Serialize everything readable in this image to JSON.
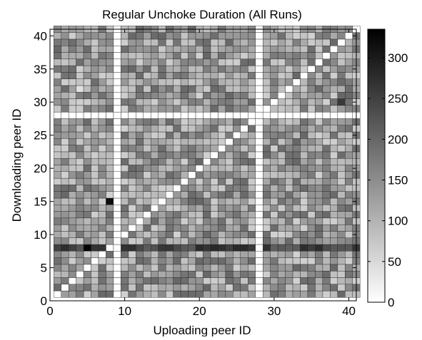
{
  "chart_data": {
    "type": "heatmap",
    "title": "Regular Unchoke Duration (All Runs)",
    "xlabel": "Uploading peer ID",
    "ylabel": "Downloading peer ID",
    "xlim": [
      0,
      41
    ],
    "ylim": [
      0,
      41
    ],
    "x_ticks": [
      0,
      10,
      20,
      30,
      40
    ],
    "y_ticks": [
      0,
      5,
      10,
      15,
      20,
      25,
      30,
      35,
      40
    ],
    "colorbar": {
      "range": [
        0,
        335
      ],
      "ticks": [
        0,
        50,
        100,
        150,
        200,
        250,
        300
      ],
      "colormap": "gray-reversed",
      "low_color": "#ffffff",
      "high_color": "#000000"
    },
    "peer_ids": [
      1,
      41
    ],
    "zero_rows": [
      28
    ],
    "zero_columns": [
      9,
      28
    ],
    "zero_diagonal": true,
    "notable_cells": [
      {
        "x": 5,
        "y": 8,
        "value": 330
      },
      {
        "x": 8,
        "y": 15,
        "value": 320
      },
      {
        "x": 27,
        "y": 8,
        "value": 260
      },
      {
        "x": 4,
        "y": 32,
        "value": 40
      },
      {
        "x": 39,
        "y": 30,
        "value": 260
      }
    ],
    "high_rows": [
      {
        "y": 8,
        "value": 240
      }
    ]
  }
}
